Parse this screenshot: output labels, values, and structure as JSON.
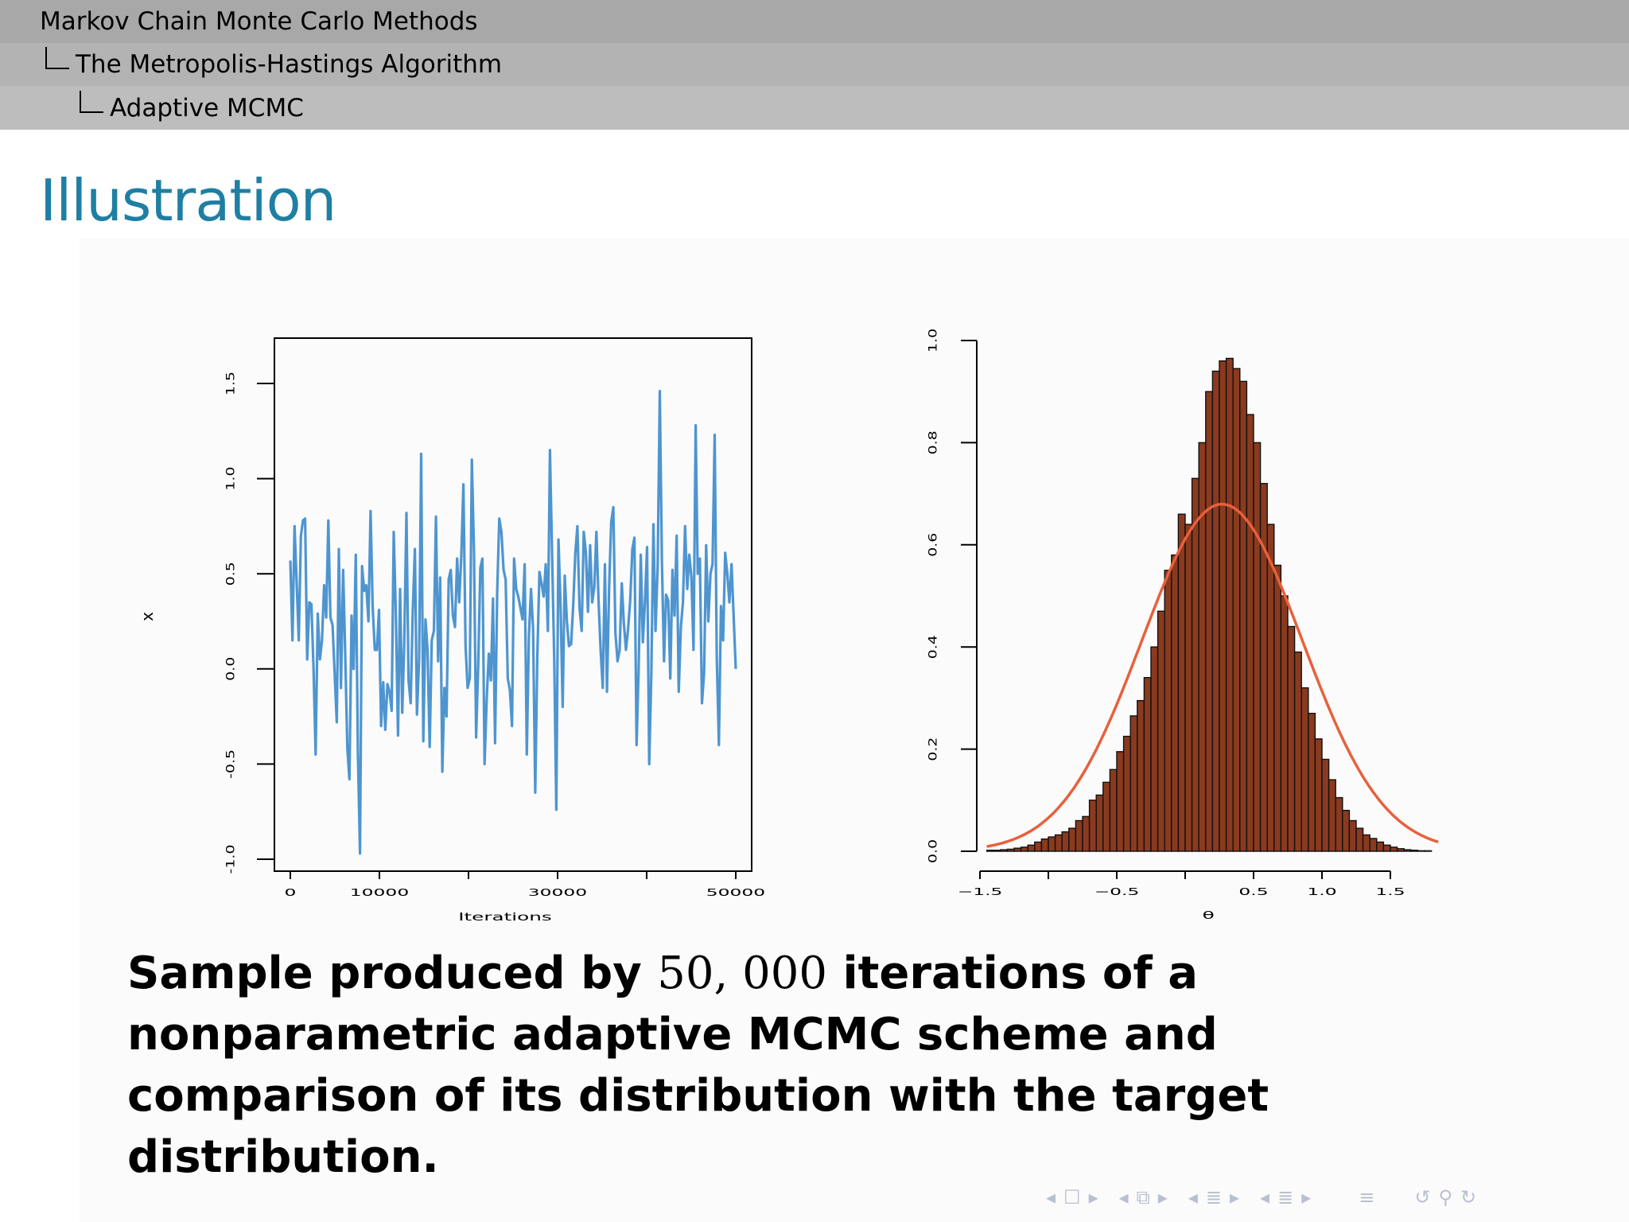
{
  "breadcrumb": {
    "level1": "Markov Chain Monte Carlo Methods",
    "level2": "The Metropolis-Hastings Algorithm",
    "level3": "Adaptive MCMC"
  },
  "slide": {
    "title": "Illustration",
    "caption_a": "Sample produced by ",
    "caption_num": "50, 000",
    "caption_b": " iterations of a nonparametric adaptive MCMC scheme and comparison of its distribution with the target distribution."
  },
  "chart_data": [
    {
      "type": "line",
      "title": "",
      "xlabel": "Iterations",
      "ylabel": "x",
      "xlim": [
        0,
        50000
      ],
      "ylim": [
        -1.0,
        1.7
      ],
      "xticks": [
        0,
        10000,
        20000,
        30000,
        40000,
        50000
      ],
      "xtick_labels": [
        "0",
        "10000",
        "",
        "30000",
        "",
        "50000"
      ],
      "yticks": [
        -1.0,
        -0.5,
        0.0,
        0.5,
        1.0,
        1.5
      ],
      "ytick_labels": [
        "-1.0",
        "-0.5",
        "0.0",
        "0.5",
        "1.0",
        "1.5"
      ],
      "series_color": "#4e95d0",
      "values": [
        0.57,
        0.15,
        0.75,
        0.45,
        0.15,
        0.7,
        0.78,
        0.79,
        0.05,
        0.35,
        0.34,
        0.0,
        -0.45,
        0.29,
        0.05,
        0.15,
        0.44,
        0.27,
        0.78,
        0.27,
        0.23,
        -0.02,
        -0.28,
        0.63,
        -0.1,
        0.52,
        0.08,
        -0.42,
        -0.58,
        0.28,
        0.0,
        0.6,
        -0.43,
        -0.97,
        0.54,
        0.41,
        0.44,
        0.25,
        0.83,
        0.33,
        0.1,
        0.1,
        0.31,
        -0.3,
        -0.07,
        -0.32,
        -0.08,
        -0.12,
        -0.22,
        0.72,
        0.28,
        -0.35,
        0.42,
        -0.23,
        0.15,
        0.82,
        -0.06,
        -0.18,
        0.3,
        0.63,
        -0.24,
        0.05,
        1.13,
        -0.38,
        0.26,
        0.1,
        -0.41,
        0.15,
        0.2,
        0.8,
        0.04,
        0.48,
        -0.54,
        -0.1,
        -0.25,
        0.47,
        0.52,
        0.28,
        0.22,
        0.58,
        0.35,
        0.6,
        0.97,
        0.12,
        -0.1,
        -0.05,
        1.1,
        0.62,
        -0.36,
        0.02,
        0.53,
        0.58,
        -0.5,
        -0.17,
        0.08,
        -0.06,
        0.37,
        -0.39,
        0.41,
        0.79,
        0.72,
        0.52,
        0.47,
        -0.05,
        -0.11,
        -0.3,
        0.58,
        0.42,
        0.38,
        0.32,
        0.26,
        0.55,
        -0.45,
        0.17,
        0.42,
        0.21,
        -0.65,
        0.06,
        0.51,
        0.45,
        0.38,
        0.55,
        0.2,
        1.15,
        0.6,
        0.05,
        -0.74,
        0.68,
        0.34,
        -0.2,
        0.49,
        0.25,
        0.12,
        0.13,
        0.33,
        0.61,
        0.75,
        0.32,
        0.2,
        0.72,
        0.61,
        0.3,
        0.65,
        0.35,
        0.43,
        0.72,
        0.36,
        0.1,
        -0.1,
        0.55,
        -0.12,
        0.43,
        0.77,
        0.85,
        0.19,
        0.04,
        0.1,
        0.45,
        0.24,
        0.1,
        0.21,
        0.36,
        0.63,
        0.69,
        -0.4,
        0.0,
        0.6,
        0.14,
        0.36,
        0.64,
        -0.5,
        -0.04,
        0.76,
        0.2,
        0.53,
        1.46,
        0.58,
        0.04,
        0.39,
        0.36,
        -0.05,
        0.52,
        0.28,
        0.7,
        -0.12,
        0.22,
        0.35,
        0.75,
        0.42,
        0.6,
        0.48,
        0.1,
        1.28,
        0.5,
        0.58,
        -0.18,
        -0.02,
        0.65,
        0.25,
        0.5,
        0.55,
        1.23,
        0.07,
        -0.4,
        0.33,
        0.15,
        0.61,
        0.5,
        0.35,
        0.55,
        0.28,
        0.0
      ]
    },
    {
      "type": "histogram",
      "title": "",
      "xlabel": "θ",
      "ylabel": "",
      "xlim": [
        -1.5,
        1.85
      ],
      "ylim": [
        0,
        1.0
      ],
      "xticks": [
        -1.5,
        -1.0,
        -0.5,
        0.0,
        0.5,
        1.0,
        1.5
      ],
      "xtick_labels": [
        "−1.5",
        "",
        "−0.5",
        "",
        "0.5",
        "1.0",
        "1.5"
      ],
      "yticks": [
        0.0,
        0.2,
        0.4,
        0.6,
        0.8,
        1.0
      ],
      "ytick_labels": [
        "0.0",
        "0.2",
        "0.4",
        "0.6",
        "0.8",
        "1.0"
      ],
      "bar_color": "#8a3a1f",
      "curve_color": "#e8603c",
      "bins": [
        {
          "x0": -1.45,
          "x1": -1.4,
          "height": 0.002
        },
        {
          "x0": -1.4,
          "x1": -1.35,
          "height": 0.002
        },
        {
          "x0": -1.35,
          "x1": -1.3,
          "height": 0.003
        },
        {
          "x0": -1.3,
          "x1": -1.25,
          "height": 0.004
        },
        {
          "x0": -1.25,
          "x1": -1.2,
          "height": 0.006
        },
        {
          "x0": -1.2,
          "x1": -1.15,
          "height": 0.008
        },
        {
          "x0": -1.15,
          "x1": -1.1,
          "height": 0.012
        },
        {
          "x0": -1.1,
          "x1": -1.05,
          "height": 0.018
        },
        {
          "x0": -1.05,
          "x1": -1.0,
          "height": 0.024
        },
        {
          "x0": -1.0,
          "x1": -0.95,
          "height": 0.028
        },
        {
          "x0": -0.95,
          "x1": -0.9,
          "height": 0.032
        },
        {
          "x0": -0.9,
          "x1": -0.85,
          "height": 0.038
        },
        {
          "x0": -0.85,
          "x1": -0.8,
          "height": 0.045
        },
        {
          "x0": -0.8,
          "x1": -0.75,
          "height": 0.06
        },
        {
          "x0": -0.75,
          "x1": -0.7,
          "height": 0.068
        },
        {
          "x0": -0.7,
          "x1": -0.65,
          "height": 0.1
        },
        {
          "x0": -0.65,
          "x1": -0.6,
          "height": 0.11
        },
        {
          "x0": -0.6,
          "x1": -0.55,
          "height": 0.135
        },
        {
          "x0": -0.55,
          "x1": -0.5,
          "height": 0.16
        },
        {
          "x0": -0.5,
          "x1": -0.45,
          "height": 0.195
        },
        {
          "x0": -0.45,
          "x1": -0.4,
          "height": 0.225
        },
        {
          "x0": -0.4,
          "x1": -0.35,
          "height": 0.265
        },
        {
          "x0": -0.35,
          "x1": -0.3,
          "height": 0.295
        },
        {
          "x0": -0.3,
          "x1": -0.25,
          "height": 0.34
        },
        {
          "x0": -0.25,
          "x1": -0.2,
          "height": 0.4
        },
        {
          "x0": -0.2,
          "x1": -0.15,
          "height": 0.47
        },
        {
          "x0": -0.15,
          "x1": -0.1,
          "height": 0.55
        },
        {
          "x0": -0.1,
          "x1": -0.05,
          "height": 0.58
        },
        {
          "x0": -0.05,
          "x1": 0.0,
          "height": 0.66
        },
        {
          "x0": 0.0,
          "x1": 0.05,
          "height": 0.64
        },
        {
          "x0": 0.05,
          "x1": 0.1,
          "height": 0.73
        },
        {
          "x0": 0.1,
          "x1": 0.15,
          "height": 0.8
        },
        {
          "x0": 0.15,
          "x1": 0.2,
          "height": 0.9
        },
        {
          "x0": 0.2,
          "x1": 0.25,
          "height": 0.94
        },
        {
          "x0": 0.25,
          "x1": 0.3,
          "height": 0.96
        },
        {
          "x0": 0.3,
          "x1": 0.35,
          "height": 0.965
        },
        {
          "x0": 0.35,
          "x1": 0.4,
          "height": 0.945
        },
        {
          "x0": 0.4,
          "x1": 0.45,
          "height": 0.92
        },
        {
          "x0": 0.45,
          "x1": 0.5,
          "height": 0.855
        },
        {
          "x0": 0.5,
          "x1": 0.55,
          "height": 0.8
        },
        {
          "x0": 0.55,
          "x1": 0.6,
          "height": 0.72
        },
        {
          "x0": 0.6,
          "x1": 0.65,
          "height": 0.64
        },
        {
          "x0": 0.65,
          "x1": 0.7,
          "height": 0.56
        },
        {
          "x0": 0.7,
          "x1": 0.75,
          "height": 0.5
        },
        {
          "x0": 0.75,
          "x1": 0.8,
          "height": 0.44
        },
        {
          "x0": 0.8,
          "x1": 0.85,
          "height": 0.39
        },
        {
          "x0": 0.85,
          "x1": 0.9,
          "height": 0.32
        },
        {
          "x0": 0.9,
          "x1": 0.95,
          "height": 0.27
        },
        {
          "x0": 0.95,
          "x1": 1.0,
          "height": 0.22
        },
        {
          "x0": 1.0,
          "x1": 1.05,
          "height": 0.18
        },
        {
          "x0": 1.05,
          "x1": 1.1,
          "height": 0.14
        },
        {
          "x0": 1.1,
          "x1": 1.15,
          "height": 0.105
        },
        {
          "x0": 1.15,
          "x1": 1.2,
          "height": 0.08
        },
        {
          "x0": 1.2,
          "x1": 1.25,
          "height": 0.06
        },
        {
          "x0": 1.25,
          "x1": 1.3,
          "height": 0.045
        },
        {
          "x0": 1.3,
          "x1": 1.35,
          "height": 0.032
        },
        {
          "x0": 1.35,
          "x1": 1.4,
          "height": 0.025
        },
        {
          "x0": 1.4,
          "x1": 1.45,
          "height": 0.018
        },
        {
          "x0": 1.45,
          "x1": 1.5,
          "height": 0.012
        },
        {
          "x0": 1.5,
          "x1": 1.55,
          "height": 0.008
        },
        {
          "x0": 1.55,
          "x1": 1.6,
          "height": 0.005
        },
        {
          "x0": 1.6,
          "x1": 1.65,
          "height": 0.003
        },
        {
          "x0": 1.65,
          "x1": 1.7,
          "height": 0.002
        },
        {
          "x0": 1.7,
          "x1": 1.75,
          "height": 0.001
        },
        {
          "x0": 1.75,
          "x1": 1.8,
          "height": 0.001
        }
      ],
      "curve": {
        "type": "normal-density",
        "mean": 0.27,
        "sd": 0.587,
        "x_range": [
          -1.45,
          1.85
        ]
      }
    }
  ],
  "nav": {
    "icons": [
      "arrow-left-icon",
      "frame-icon",
      "arrow-right-icon",
      "arrow-left-icon",
      "frames-stack-icon",
      "arrow-right-icon",
      "arrow-left-icon",
      "section-icon",
      "arrow-right-icon",
      "arrow-left-icon",
      "subsection-icon",
      "arrow-right-icon",
      "align-icon",
      "back-loop-icon",
      "search-icon",
      "forward-loop-icon"
    ],
    "color": "#b8c0d0"
  }
}
